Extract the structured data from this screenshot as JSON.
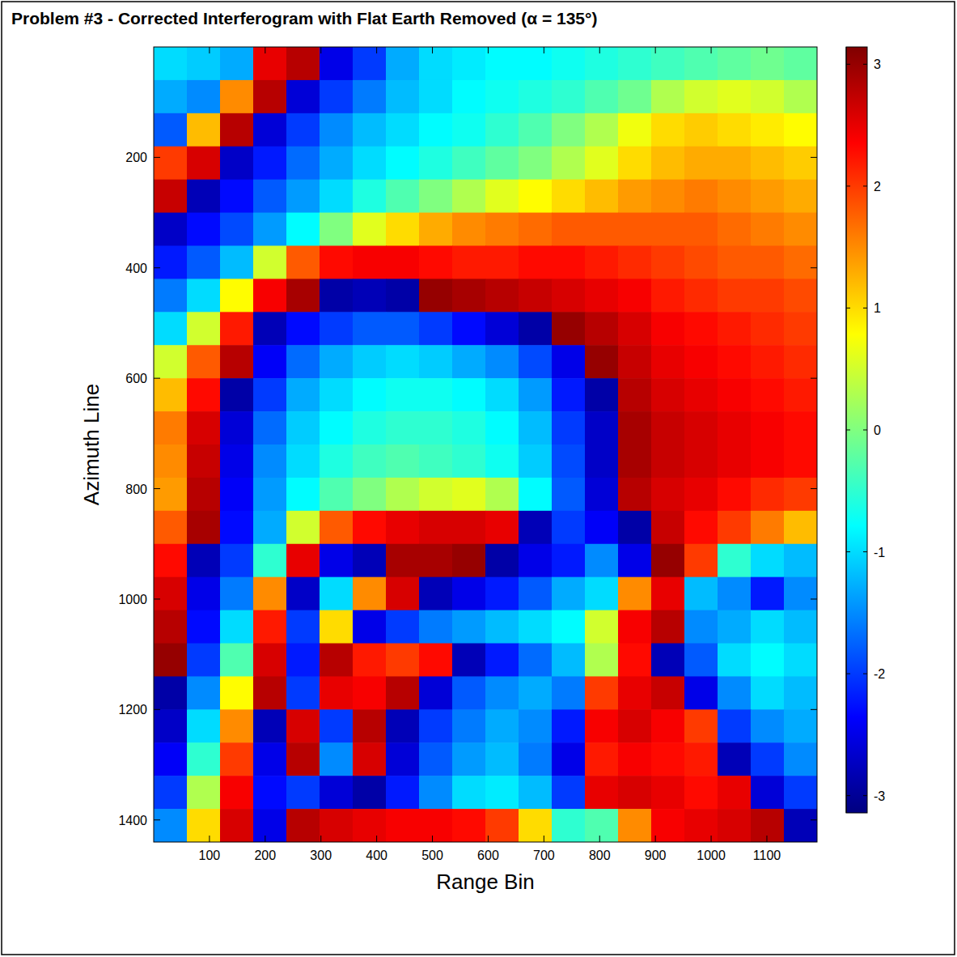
{
  "chart_data": {
    "type": "heatmap",
    "title": "Problem #3 - Corrected Interferogram with Flat Earth Removed (α = 135°)",
    "x_label": "Range Bin",
    "y_label": "Azimuth Line",
    "xlim": [
      0,
      1190
    ],
    "ylim": [
      1440,
      0
    ],
    "xticks": [
      100,
      200,
      300,
      400,
      500,
      600,
      700,
      800,
      900,
      1000,
      1100
    ],
    "yticks": [
      200,
      400,
      600,
      800,
      1000,
      1200,
      1400
    ],
    "colorbar_lim": [
      -3.1416,
      3.1416
    ],
    "colorbar_ticks": [
      -3,
      -2,
      -1,
      0,
      1,
      2,
      3
    ],
    "grid": false,
    "x": [
      29.75,
      89.25,
      148.75,
      208.25,
      267.75,
      327.25,
      386.75,
      446.25,
      505.75,
      565.25,
      624.75,
      684.25,
      743.75,
      803.25,
      862.75,
      922.25,
      981.75,
      1041.25,
      1100.75,
      1160.25
    ],
    "y": [
      30,
      90,
      150,
      210,
      270,
      330,
      390,
      450,
      510,
      570,
      630,
      690,
      750,
      810,
      870,
      930,
      990,
      1050,
      1110,
      1170,
      1230,
      1290,
      1350,
      1410
    ],
    "values": [
      [
        -1.0,
        -1.1,
        -1.3,
        2.5,
        2.8,
        -2.5,
        -2.0,
        -1.3,
        -1.0,
        -0.9,
        -0.8,
        -0.8,
        -0.7,
        -0.6,
        -0.5,
        -0.4,
        -0.3,
        -0.2,
        -0.1,
        -0.2
      ],
      [
        -1.3,
        -1.5,
        1.5,
        2.8,
        -2.6,
        -2.0,
        -1.6,
        -1.2,
        -1.0,
        -0.8,
        -0.7,
        -0.6,
        -0.5,
        -0.3,
        -0.1,
        0.3,
        0.5,
        0.6,
        0.5,
        0.3
      ],
      [
        -1.8,
        1.2,
        2.8,
        -2.6,
        -2.0,
        -1.5,
        -1.2,
        -1.0,
        -0.8,
        -0.7,
        -0.5,
        -0.3,
        0.0,
        0.3,
        0.7,
        1.0,
        1.1,
        1.0,
        0.9,
        0.8
      ],
      [
        2.0,
        2.6,
        -2.7,
        -2.2,
        -1.7,
        -1.3,
        -1.0,
        -0.8,
        -0.6,
        -0.4,
        -0.2,
        0.0,
        0.3,
        0.6,
        1.0,
        1.2,
        1.3,
        1.3,
        1.2,
        1.1
      ],
      [
        2.7,
        -2.8,
        -2.3,
        -1.8,
        -1.4,
        -1.0,
        -0.6,
        -0.3,
        0.0,
        0.3,
        0.6,
        0.8,
        1.0,
        1.2,
        1.4,
        1.5,
        1.6,
        1.5,
        1.4,
        1.3
      ],
      [
        -2.7,
        -2.3,
        -1.9,
        -1.4,
        -0.8,
        0.0,
        0.6,
        1.0,
        1.3,
        1.5,
        1.6,
        1.7,
        1.8,
        1.8,
        1.8,
        1.8,
        1.8,
        1.7,
        1.6,
        1.5
      ],
      [
        -2.2,
        -1.8,
        -1.2,
        0.5,
        1.8,
        2.3,
        2.4,
        2.4,
        2.3,
        2.2,
        2.2,
        2.3,
        2.3,
        2.2,
        2.1,
        2.0,
        1.9,
        1.8,
        1.8,
        1.7
      ],
      [
        -1.6,
        -1.0,
        0.8,
        2.4,
        2.9,
        -2.9,
        -2.8,
        -2.9,
        3.0,
        2.9,
        2.8,
        2.7,
        2.6,
        2.5,
        2.4,
        2.2,
        2.1,
        2.0,
        2.0,
        1.9
      ],
      [
        -1.0,
        0.5,
        2.2,
        -2.8,
        -2.3,
        -2.0,
        -1.8,
        -1.8,
        -2.0,
        -2.3,
        -2.6,
        -2.9,
        3.0,
        2.8,
        2.6,
        2.4,
        2.3,
        2.2,
        2.1,
        2.0
      ],
      [
        0.5,
        1.8,
        2.8,
        -2.4,
        -1.7,
        -1.3,
        -1.1,
        -1.0,
        -1.1,
        -1.3,
        -1.5,
        -1.9,
        -2.5,
        3.0,
        2.7,
        2.5,
        2.4,
        2.3,
        2.2,
        2.1
      ],
      [
        1.2,
        2.3,
        -2.9,
        -2.0,
        -1.3,
        -1.0,
        -0.8,
        -0.7,
        -0.7,
        -0.8,
        -1.0,
        -1.4,
        -2.2,
        -2.9,
        2.8,
        2.6,
        2.5,
        2.4,
        2.3,
        2.2
      ],
      [
        1.6,
        2.6,
        -2.6,
        -1.7,
        -1.1,
        -0.8,
        -0.6,
        -0.5,
        -0.5,
        -0.6,
        -0.8,
        -1.2,
        -2.0,
        -2.7,
        2.9,
        2.7,
        2.6,
        2.5,
        2.4,
        2.3
      ],
      [
        1.5,
        2.7,
        -2.5,
        -1.5,
        -1.0,
        -0.6,
        -0.4,
        -0.3,
        -0.4,
        -0.5,
        -0.7,
        -1.1,
        -1.9,
        -2.7,
        2.9,
        2.7,
        2.6,
        2.5,
        2.4,
        2.3
      ],
      [
        1.4,
        2.8,
        -2.4,
        -1.4,
        -0.8,
        -0.3,
        0.0,
        0.3,
        0.5,
        0.6,
        0.3,
        -0.8,
        -1.8,
        -2.6,
        2.8,
        2.6,
        2.5,
        2.3,
        2.1,
        2.0
      ],
      [
        1.8,
        2.9,
        -2.3,
        -1.3,
        0.5,
        1.8,
        2.3,
        2.5,
        2.6,
        2.6,
        2.5,
        -2.8,
        -2.0,
        -2.4,
        -2.9,
        2.7,
        2.3,
        2.0,
        1.6,
        1.2
      ],
      [
        2.3,
        -2.8,
        -2.0,
        -0.5,
        2.5,
        -2.5,
        -2.8,
        2.9,
        2.9,
        3.0,
        -2.9,
        -2.5,
        -2.2,
        -1.5,
        -2.5,
        3.0,
        2.0,
        -0.5,
        -1.0,
        -1.2
      ],
      [
        2.6,
        -2.5,
        -1.6,
        1.5,
        -2.7,
        -1.0,
        1.5,
        2.6,
        -2.8,
        -2.5,
        -2.2,
        -1.8,
        -1.3,
        -1.0,
        1.5,
        2.5,
        -1.2,
        -1.5,
        -2.2,
        -1.5
      ],
      [
        2.8,
        -2.3,
        -1.0,
        2.2,
        -2.0,
        1.0,
        -2.5,
        -2.0,
        -1.6,
        -1.4,
        -1.2,
        -1.0,
        -0.8,
        0.5,
        2.4,
        2.8,
        -1.5,
        -1.3,
        -1.0,
        -1.2
      ],
      [
        3.0,
        -2.0,
        -0.3,
        2.6,
        -2.2,
        2.8,
        2.2,
        2.0,
        2.3,
        -2.8,
        -2.2,
        -1.7,
        -1.2,
        0.3,
        2.3,
        -2.8,
        -1.8,
        -1.0,
        -0.8,
        -1.0
      ],
      [
        -2.9,
        -1.5,
        0.8,
        2.8,
        -2.0,
        2.5,
        2.4,
        2.8,
        -2.6,
        -1.8,
        -1.5,
        -1.3,
        -1.6,
        2.0,
        2.5,
        2.7,
        -2.5,
        -1.5,
        -1.0,
        -1.2
      ],
      [
        -2.7,
        -1.0,
        1.5,
        -2.8,
        2.6,
        -2.0,
        2.8,
        -2.8,
        -2.0,
        -1.6,
        -1.3,
        -1.5,
        -2.2,
        2.4,
        2.6,
        2.4,
        2.0,
        -2.0,
        -1.5,
        -1.3
      ],
      [
        -2.4,
        -0.5,
        2.0,
        -2.5,
        2.8,
        -1.5,
        2.6,
        -2.6,
        -1.8,
        -1.4,
        -1.2,
        -1.6,
        -2.5,
        2.2,
        2.4,
        2.3,
        2.2,
        -2.8,
        -2.0,
        -1.5
      ],
      [
        -2.0,
        0.3,
        2.4,
        -2.3,
        -2.0,
        -2.6,
        -2.9,
        -2.2,
        -1.5,
        -1.0,
        -0.9,
        -1.2,
        -2.0,
        2.5,
        2.6,
        2.5,
        2.3,
        2.5,
        -2.6,
        -2.0
      ],
      [
        -1.5,
        1.0,
        2.6,
        -2.5,
        2.8,
        2.6,
        2.5,
        2.4,
        2.4,
        2.3,
        2.0,
        1.0,
        -0.5,
        -0.3,
        1.5,
        2.4,
        2.5,
        2.6,
        2.8,
        -2.8
      ]
    ]
  }
}
